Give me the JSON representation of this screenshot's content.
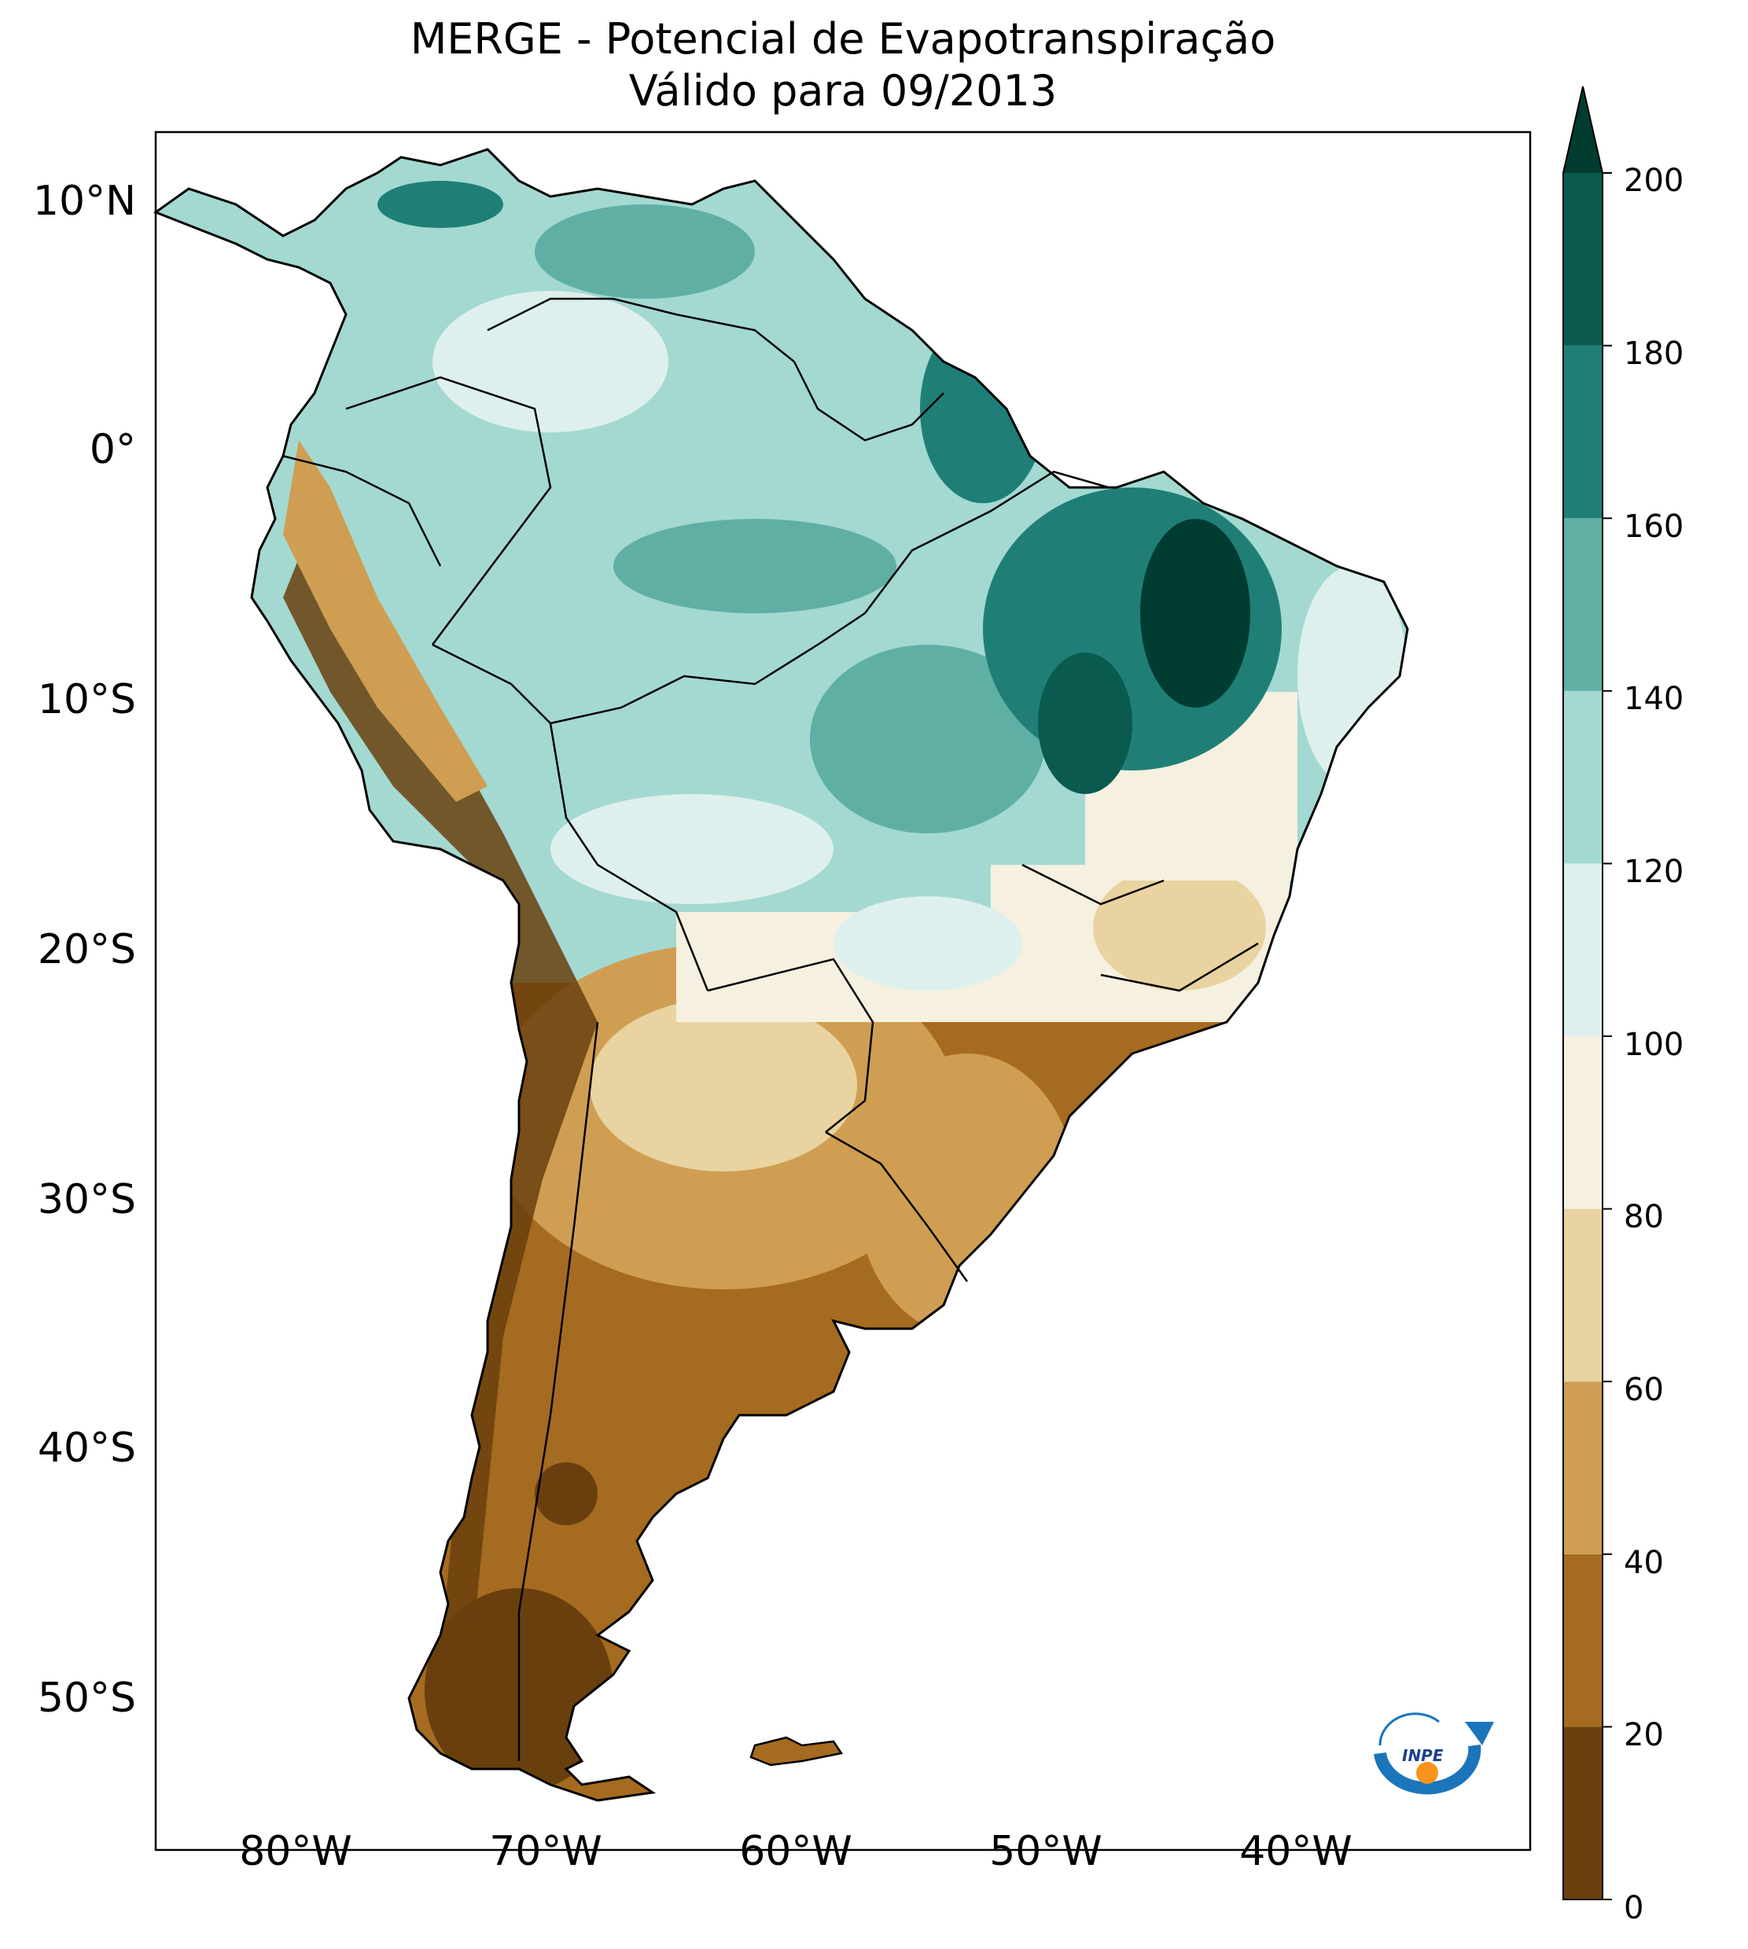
{
  "title": {
    "line1": "MERGE - Potencial de Evapotranspiração",
    "line2": "Válido para 09/2013"
  },
  "map": {
    "region": "South America",
    "variable": "Potencial de Evapotranspiração",
    "lat_labels": [
      "10°N",
      "0°",
      "10°S",
      "20°S",
      "30°S",
      "40°S",
      "50°S"
    ],
    "lon_labels": [
      "80°W",
      "70°W",
      "60°W",
      "50°W",
      "40°W"
    ],
    "colors": {
      "frame": "#000000",
      "land_border": "#000000",
      "background": "#ffffff"
    }
  },
  "colorbar": {
    "ticks": [
      "0",
      "20",
      "40",
      "60",
      "80",
      "100",
      "120",
      "140",
      "160",
      "180",
      "200"
    ],
    "extend": "max",
    "levels": [
      {
        "from": 0,
        "to": 20,
        "color": "#6a3f0e"
      },
      {
        "from": 20,
        "to": 40,
        "color": "#a56b20"
      },
      {
        "from": 40,
        "to": 60,
        "color": "#cf9e52"
      },
      {
        "from": 60,
        "to": 80,
        "color": "#e9d3a0"
      },
      {
        "from": 80,
        "to": 100,
        "color": "#f5f0e0"
      },
      {
        "from": 100,
        "to": 120,
        "color": "#def0ee"
      },
      {
        "from": 120,
        "to": 140,
        "color": "#a3d9d1"
      },
      {
        "from": 140,
        "to": 160,
        "color": "#5fafa5"
      },
      {
        "from": 160,
        "to": 180,
        "color": "#1f7f77"
      },
      {
        "from": 180,
        "to": 200,
        "color": "#0a5a50"
      }
    ],
    "over_color": "#003c30"
  },
  "logo": {
    "name": "INPE",
    "colors": {
      "blue": "#1b75bb",
      "orange": "#f7941d"
    }
  }
}
